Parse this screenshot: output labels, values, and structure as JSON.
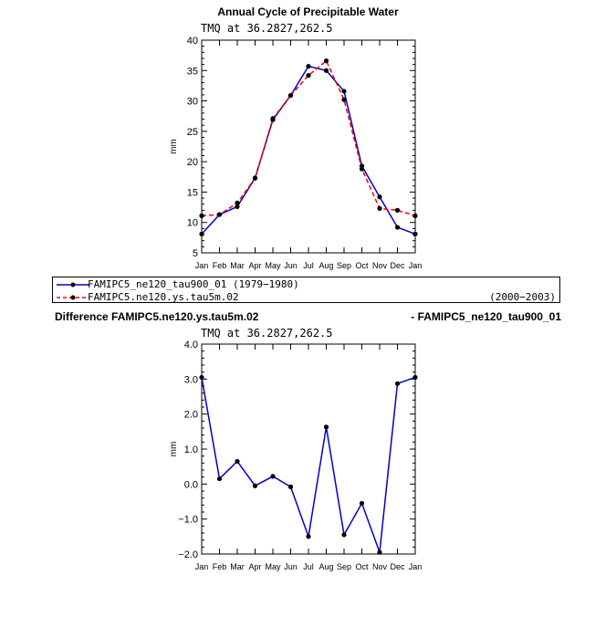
{
  "chart_data": [
    {
      "type": "line",
      "title": "Annual Cycle of Precipitable Water",
      "subtitle": "TMQ at 36.2827,262.5",
      "xlabel": "",
      "ylabel": "mm",
      "categories": [
        "Jan",
        "Feb",
        "Mar",
        "Apr",
        "May",
        "Jun",
        "Jul",
        "Aug",
        "Sep",
        "Oct",
        "Nov",
        "Dec",
        "Jan"
      ],
      "ylim": [
        5,
        40
      ],
      "yticks": [
        5,
        10,
        15,
        20,
        25,
        30,
        35,
        40
      ],
      "ytick_labels": [
        "5",
        "10",
        "15",
        "20",
        "25",
        "30",
        "35",
        "40"
      ],
      "series": [
        {
          "name": "FAMIPC5_ne120_tau900_01",
          "period": "(1979-1980)",
          "color": "#0000cc",
          "style": "solid",
          "values": [
            8.1,
            11.3,
            12.6,
            17.3,
            26.9,
            30.9,
            35.7,
            35.0,
            31.6,
            19.3,
            14.2,
            9.2,
            8.1
          ]
        },
        {
          "name": "FAMIPC5.ne120.ys.tau5m.02",
          "period": "(2000-2003)",
          "color": "#ff0000",
          "style": "dashed",
          "values": [
            11.1,
            11.3,
            13.2,
            17.3,
            27.1,
            30.9,
            34.2,
            36.6,
            30.2,
            18.8,
            12.3,
            12.0,
            11.1
          ]
        }
      ]
    },
    {
      "type": "line",
      "title_left": "Difference FAMIPC5.ne120.ys.tau5m.02",
      "title_right": "- FAMIPC5_ne120_tau900_01",
      "subtitle": "TMQ at 36.2827,262.5",
      "xlabel": "",
      "ylabel": "mm",
      "categories": [
        "Jan",
        "Feb",
        "Mar",
        "Apr",
        "May",
        "Jun",
        "Jul",
        "Aug",
        "Sep",
        "Oct",
        "Nov",
        "Dec",
        "Jan"
      ],
      "ylim": [
        -2.0,
        4.0
      ],
      "yticks": [
        -2,
        -1,
        0,
        1,
        2,
        3,
        4
      ],
      "ytick_labels": [
        "−2.0",
        "−1.0",
        "0.0",
        "1.0",
        "2.0",
        "3.0",
        "4.0"
      ],
      "series": [
        {
          "name": "difference",
          "color": "#0000cc",
          "style": "solid",
          "values": [
            3.05,
            0.15,
            0.65,
            -0.05,
            0.22,
            -0.08,
            -1.5,
            1.63,
            -1.45,
            -0.55,
            -1.95,
            2.87,
            3.05
          ]
        }
      ]
    }
  ],
  "legend": [
    {
      "label": "FAMIPC5_ne120_tau900_01 (1979−1980)",
      "period": ""
    },
    {
      "label": "FAMIPC5.ne120.ys.tau5m.02",
      "period": "(2000−2003)"
    }
  ]
}
